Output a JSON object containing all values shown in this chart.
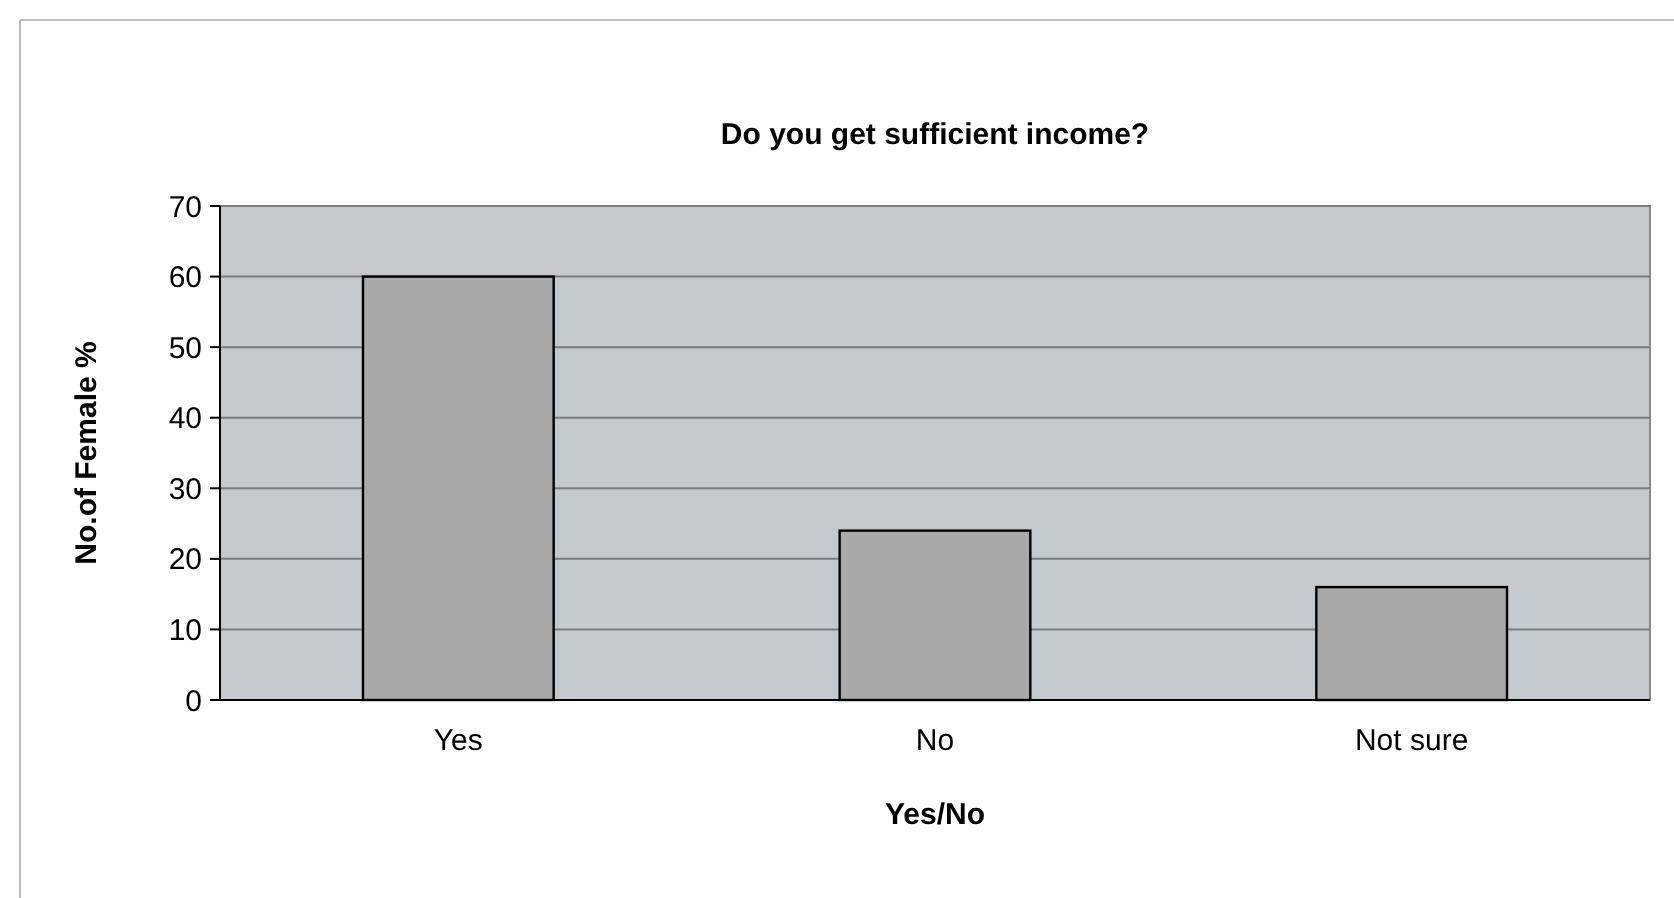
{
  "chart_data": {
    "type": "bar",
    "title": "Do you get sufficient income?",
    "xlabel": "Yes/No",
    "ylabel": "No.of Female %",
    "categories": [
      "Yes",
      "No",
      "Not sure"
    ],
    "values": [
      60,
      24,
      16
    ],
    "color": "#a9a9a9",
    "ylim": [
      0,
      70
    ],
    "yticks": [
      0,
      10,
      20,
      30,
      40,
      50,
      60,
      70
    ],
    "grid": "y"
  }
}
